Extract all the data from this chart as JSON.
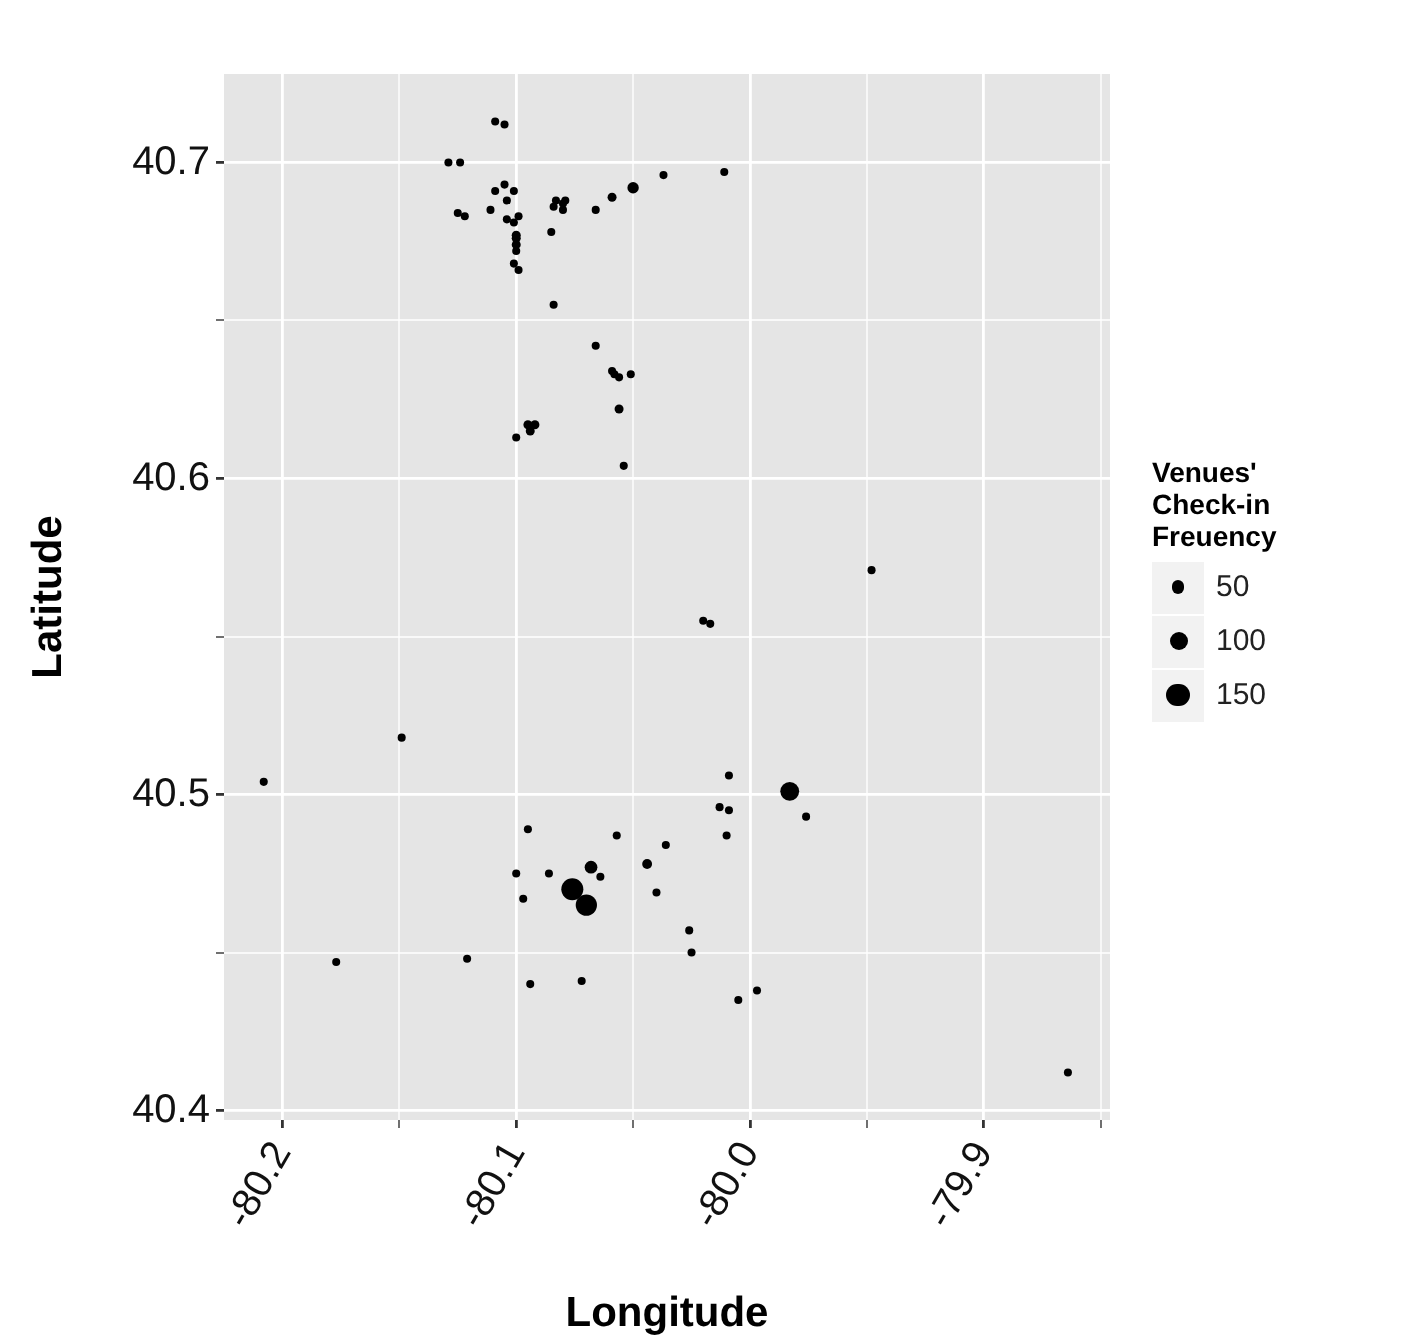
{
  "chart_data": {
    "type": "bubble",
    "xlabel": "Longitude",
    "ylabel": "Latitude",
    "legend_title": "Venues' Check-in Freuency",
    "grid": true,
    "xlim": [
      -80.225,
      -79.846
    ],
    "ylim": [
      40.397,
      40.728
    ],
    "xticks": [
      {
        "value": -80.2,
        "label": "-80.2"
      },
      {
        "value": -80.15,
        "label": null
      },
      {
        "value": -80.1,
        "label": "-80.1"
      },
      {
        "value": -80.05,
        "label": null
      },
      {
        "value": -80.0,
        "label": "-80.0"
      },
      {
        "value": -79.95,
        "label": null
      },
      {
        "value": -79.9,
        "label": "-79.9"
      },
      {
        "value": -79.85,
        "label": null
      }
    ],
    "yticks": [
      40.4,
      {
        "value": 40.45,
        "label": null
      },
      40.5,
      {
        "value": 40.55,
        "label": null
      },
      40.6,
      {
        "value": 40.65,
        "label": null
      },
      40.7
    ],
    "size_legend": [
      50,
      100,
      150
    ],
    "series": [
      {
        "color": "#000000",
        "x": [
          -80.109,
          -80.105,
          -80.129,
          -80.124,
          -80.109,
          -80.105,
          -80.101,
          -80.104,
          -80.111,
          -80.125,
          -80.122,
          -80.104,
          -80.101,
          -80.099,
          -80.1,
          -80.1,
          -80.1,
          -80.1,
          -80.101,
          -80.099,
          -80.084,
          -80.083,
          -80.08,
          -80.079,
          -80.08,
          -80.085,
          -80.066,
          -80.059,
          -80.05,
          -80.037,
          -80.011,
          -80.084,
          -80.066,
          -80.059,
          -80.058,
          -80.056,
          -80.051,
          -80.056,
          -80.054,
          -80.095,
          -80.092,
          -80.094,
          -80.1,
          -79.948,
          -80.02,
          -80.017,
          -80.149,
          -80.208,
          -80.009,
          -79.983,
          -79.976,
          -80.013,
          -80.009,
          -80.01,
          -80.095,
          -80.057,
          -80.036,
          -80.044,
          -80.068,
          -80.064,
          -80.086,
          -80.1,
          -80.097,
          -80.076,
          -80.07,
          -80.04,
          -80.026,
          -80.025,
          -80.177,
          -80.121,
          -80.094,
          -80.072,
          -80.005,
          -79.997,
          -79.864
        ],
        "values": [
          40.713,
          40.712,
          40.7,
          40.7,
          40.691,
          40.693,
          40.691,
          40.688,
          40.685,
          40.684,
          40.683,
          40.682,
          40.681,
          40.683,
          40.677,
          40.676,
          40.674,
          40.672,
          40.668,
          40.666,
          40.686,
          40.688,
          40.687,
          40.688,
          40.685,
          40.678,
          40.685,
          40.689,
          40.692,
          40.696,
          40.697,
          40.655,
          40.642,
          40.634,
          40.633,
          40.632,
          40.633,
          40.622,
          40.604,
          40.617,
          40.617,
          40.615,
          40.613,
          40.571,
          40.555,
          40.554,
          40.518,
          40.504,
          40.506,
          40.501,
          40.493,
          40.496,
          40.495,
          40.487,
          40.489,
          40.487,
          40.484,
          40.478,
          40.477,
          40.474,
          40.475,
          40.475,
          40.467,
          40.47,
          40.465,
          40.469,
          40.457,
          40.45,
          40.447,
          40.448,
          40.44,
          40.441,
          40.435,
          40.438,
          40.412
        ],
        "sizes": [
          20,
          20,
          20,
          20,
          20,
          20,
          20,
          20,
          20,
          20,
          20,
          20,
          20,
          20,
          25,
          25,
          25,
          20,
          20,
          20,
          20,
          20,
          20,
          20,
          20,
          20,
          20,
          25,
          40,
          20,
          20,
          20,
          20,
          20,
          20,
          20,
          20,
          25,
          20,
          25,
          25,
          25,
          20,
          20,
          20,
          20,
          20,
          20,
          20,
          110,
          20,
          20,
          20,
          20,
          20,
          20,
          20,
          30,
          50,
          20,
          20,
          20,
          20,
          150,
          140,
          20,
          20,
          20,
          20,
          20,
          20,
          20,
          20,
          20,
          20
        ]
      }
    ]
  }
}
